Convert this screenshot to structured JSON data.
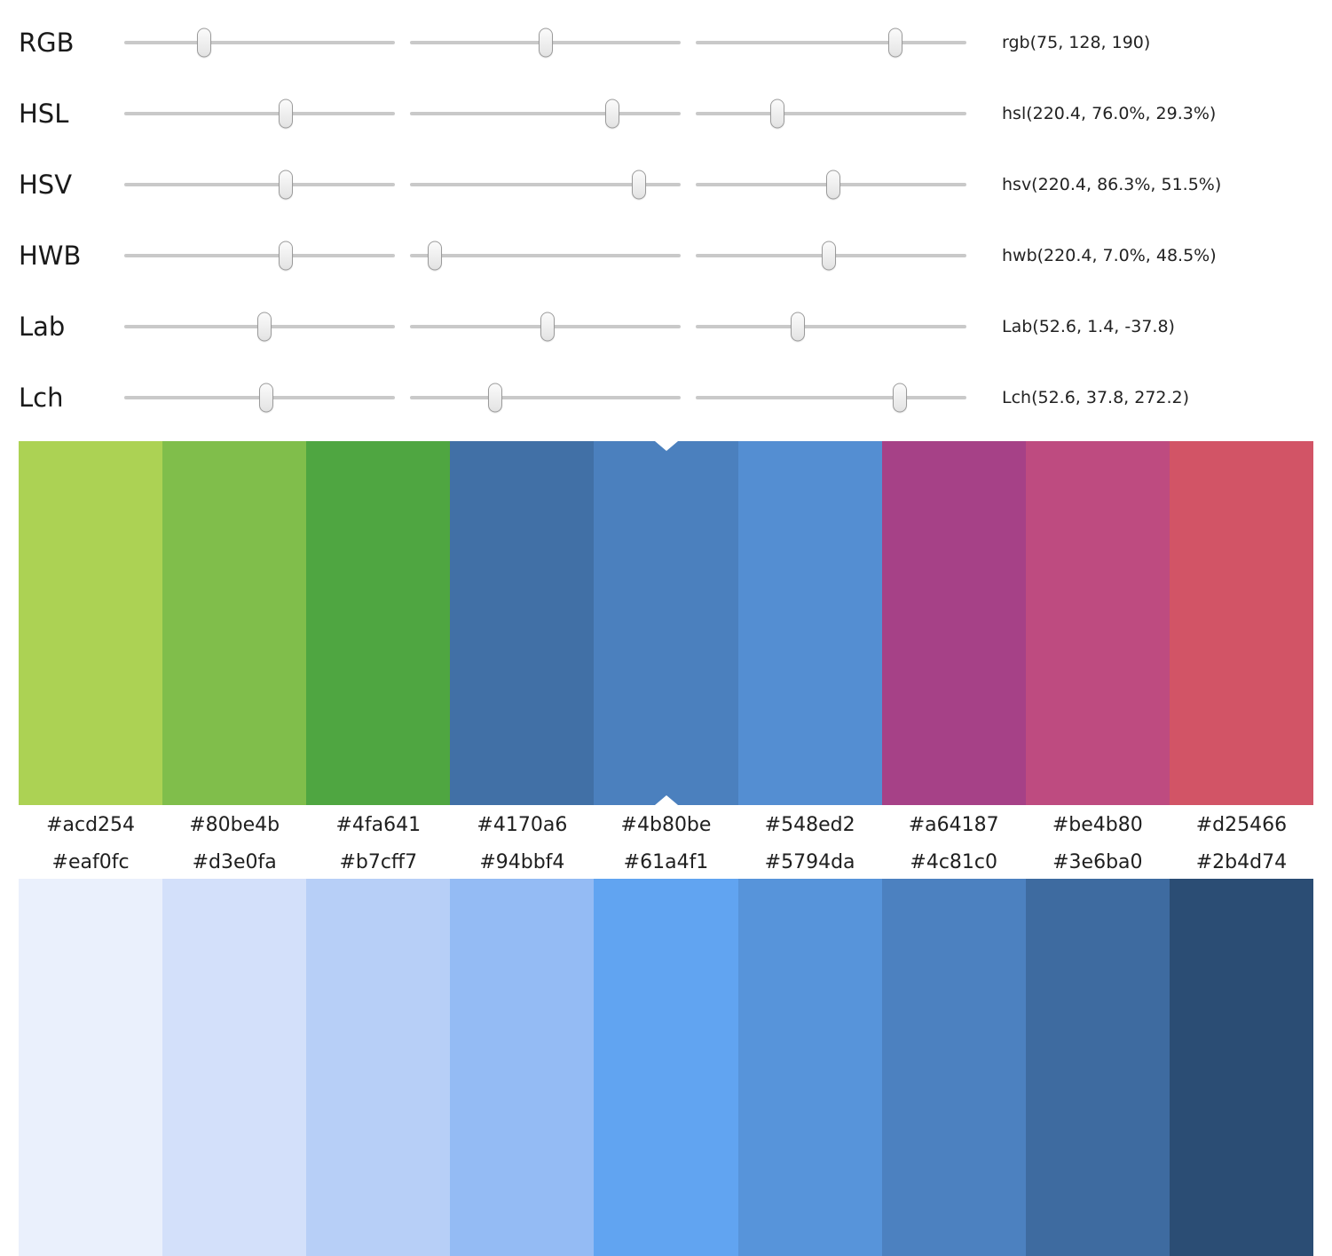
{
  "sliders": [
    {
      "label": "RGB",
      "value": "rgb(75, 128, 190)",
      "positions": [
        29.5,
        50.2,
        73.8
      ]
    },
    {
      "label": "HSL",
      "value": "hsl(220.4, 76.0%, 29.3%)",
      "positions": [
        59.7,
        74.8,
        30.2
      ]
    },
    {
      "label": "HSV",
      "value": "hsv(220.4, 86.3%, 51.5%)",
      "positions": [
        59.7,
        84.6,
        50.8
      ]
    },
    {
      "label": "HWB",
      "value": "hwb(220.4, 7.0%, 48.5%)",
      "positions": [
        59.7,
        9.2,
        49.2
      ]
    },
    {
      "label": "Lab",
      "value": "Lab(52.6, 1.4, -37.8)",
      "positions": [
        51.8,
        50.8,
        37.7
      ]
    },
    {
      "label": "Lch",
      "value": "Lch(52.6, 37.8, 272.2)",
      "positions": [
        52.5,
        31.5,
        75.4
      ]
    }
  ],
  "palette_top": {
    "selected_index": 4,
    "swatches": [
      "#acd254",
      "#80be4b",
      "#4fa641",
      "#4170a6",
      "#4b80be",
      "#548ed2",
      "#a64187",
      "#be4b80",
      "#d25466"
    ]
  },
  "palette_bottom": {
    "swatches": [
      "#eaf0fc",
      "#d3e0fa",
      "#b7cff7",
      "#94bbf4",
      "#61a4f1",
      "#5794da",
      "#4c81c0",
      "#3e6ba0",
      "#2b4d74"
    ]
  }
}
